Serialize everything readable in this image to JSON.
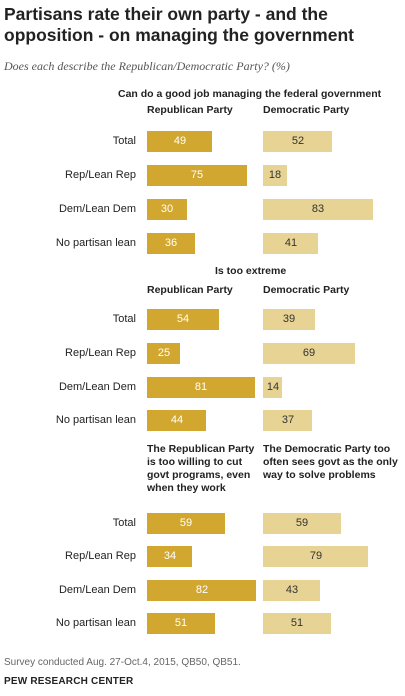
{
  "header": {
    "title": "Partisans rate their own party - and the opposition - on managing the government",
    "subtitle": "Does each describe the Republican/Democratic Party? (%)"
  },
  "colors": {
    "republican": "#d1a730",
    "democratic": "#e7d393"
  },
  "footer": {
    "source": "Survey conducted Aug. 27-Oct.4, 2015, QB50, QB51.",
    "brand": "PEW RESEARCH CENTER"
  },
  "chart_data": {
    "type": "bar",
    "orientation": "horizontal",
    "categories": [
      "Total",
      "Rep/Lean Rep",
      "Dem/Lean Dem",
      "No partisan lean"
    ],
    "panels": [
      {
        "title": "Can do a good job managing the federal government",
        "series": [
          {
            "name": "Republican Party",
            "values": [
              49,
              75,
              30,
              36
            ]
          },
          {
            "name": "Democratic Party",
            "values": [
              52,
              18,
              83,
              41
            ]
          }
        ]
      },
      {
        "title": "Is too extreme",
        "series": [
          {
            "name": "Republican Party",
            "values": [
              54,
              25,
              81,
              44
            ]
          },
          {
            "name": "Democratic Party",
            "values": [
              39,
              69,
              14,
              37
            ]
          }
        ]
      },
      {
        "title": "",
        "series": [
          {
            "name": "The Republican Party is too willing to cut govt programs, even when they work",
            "values": [
              59,
              34,
              82,
              51
            ]
          },
          {
            "name": "The Democratic Party too often sees govt as the only way to solve problems",
            "values": [
              59,
              79,
              43,
              51
            ]
          }
        ]
      }
    ]
  }
}
